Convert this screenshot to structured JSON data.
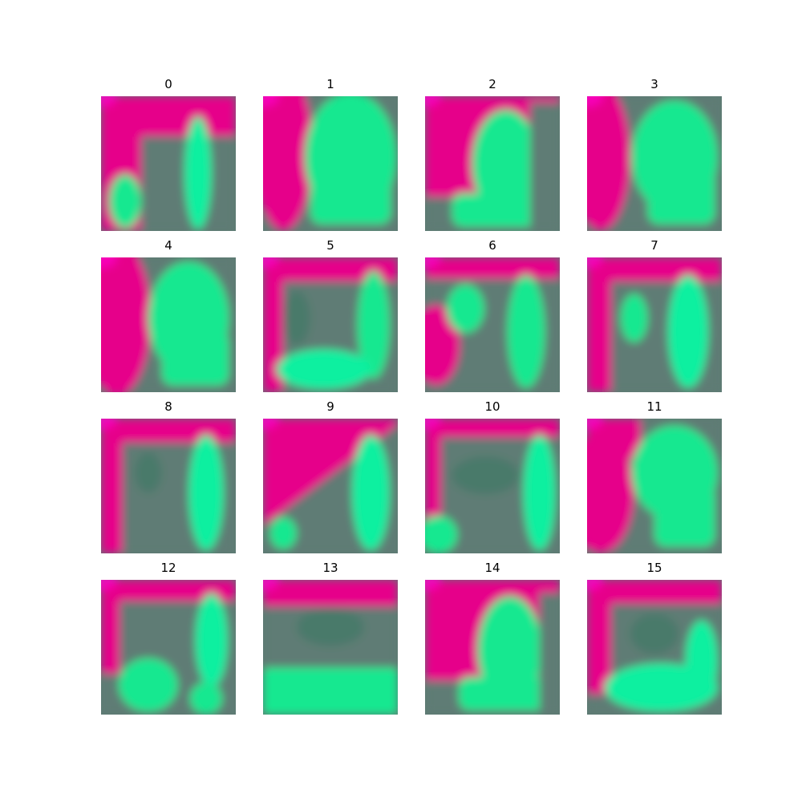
{
  "figure": {
    "palette": {
      "magenta": "#ff00cc",
      "pink": "#e6008a",
      "teal_dark": "#4a7a6a",
      "grey_mid": "#5e7b74",
      "green": "#18e890",
      "green_bright": "#10f0a0"
    },
    "tiles": [
      {
        "label": "0"
      },
      {
        "label": "1"
      },
      {
        "label": "2"
      },
      {
        "label": "3"
      },
      {
        "label": "4"
      },
      {
        "label": "5"
      },
      {
        "label": "6"
      },
      {
        "label": "7"
      },
      {
        "label": "8"
      },
      {
        "label": "9"
      },
      {
        "label": "10"
      },
      {
        "label": "11"
      },
      {
        "label": "12"
      },
      {
        "label": "13"
      },
      {
        "label": "14"
      },
      {
        "label": "15"
      }
    ]
  }
}
